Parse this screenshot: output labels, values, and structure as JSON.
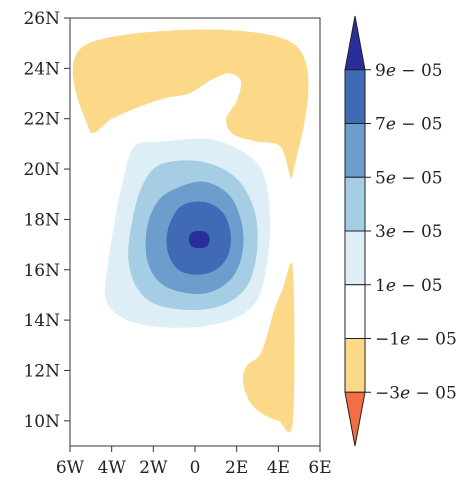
{
  "chart_data": {
    "type": "heatmap",
    "subtype": "filled-contour-map",
    "title": "",
    "xlabel": "",
    "ylabel": "",
    "xlim": [
      -6,
      6
    ],
    "ylim": [
      9,
      26
    ],
    "xticks": [
      {
        "value": -6,
        "label": "6W"
      },
      {
        "value": -4,
        "label": "4W"
      },
      {
        "value": -2,
        "label": "2W"
      },
      {
        "value": 0,
        "label": "0"
      },
      {
        "value": 2,
        "label": "2E"
      },
      {
        "value": 4,
        "label": "4E"
      },
      {
        "value": 6,
        "label": "6E"
      }
    ],
    "yticks": [
      {
        "value": 10,
        "label": "10N"
      },
      {
        "value": 12,
        "label": "12N"
      },
      {
        "value": 14,
        "label": "14N"
      },
      {
        "value": 16,
        "label": "16N"
      },
      {
        "value": 18,
        "label": "18N"
      },
      {
        "value": 20,
        "label": "20N"
      },
      {
        "value": 22,
        "label": "22N"
      },
      {
        "value": 24,
        "label": "24N"
      },
      {
        "value": 26,
        "label": "26N"
      }
    ],
    "grid": false,
    "colorbar": {
      "placement": "right",
      "extend": "both",
      "levels": [
        {
          "value": 9e-05,
          "label": "9e − 05"
        },
        {
          "value": 7e-05,
          "label": "7e − 05"
        },
        {
          "value": 5e-05,
          "label": "5e − 05"
        },
        {
          "value": 3e-05,
          "label": "3e − 05"
        },
        {
          "value": 1e-05,
          "label": "1e − 05"
        },
        {
          "value": -1e-05,
          "label": "−1e − 05"
        },
        {
          "value": -3e-05,
          "label": "−3e − 05"
        }
      ],
      "bands": [
        {
          "range": [
            9e-05,
            null
          ],
          "color": "#2b2d9b"
        },
        {
          "range": [
            7e-05,
            9e-05
          ],
          "color": "#3f6ab5"
        },
        {
          "range": [
            5e-05,
            7e-05
          ],
          "color": "#6c9dcc"
        },
        {
          "range": [
            3e-05,
            5e-05
          ],
          "color": "#a5cde3"
        },
        {
          "range": [
            1e-05,
            3e-05
          ],
          "color": "#ddeef7"
        },
        {
          "range": [
            -1e-05,
            1e-05
          ],
          "color": "#ffffff"
        },
        {
          "range": [
            -3e-05,
            -1e-05
          ],
          "color": "#fcd889"
        },
        {
          "range": [
            null,
            -3e-05
          ],
          "color": "#f46d43"
        }
      ]
    },
    "contours": {
      "positive_center": {
        "lon": 0.3,
        "lat": 17.2
      },
      "filled_regions": [
        {
          "level": 1e-05,
          "color": "#ddeef7",
          "polygon": [
            [
              -2.9,
              20.9
            ],
            [
              -1.5,
              21.1
            ],
            [
              0.5,
              21.2
            ],
            [
              1.8,
              20.9
            ],
            [
              2.9,
              20.3
            ],
            [
              3.4,
              19.5
            ],
            [
              3.6,
              18
            ],
            [
              3.5,
              16.5
            ],
            [
              3.1,
              15
            ],
            [
              2.4,
              14.3
            ],
            [
              1.3,
              13.9
            ],
            [
              -0.4,
              13.7
            ],
            [
              -2.4,
              13.8
            ],
            [
              -3.7,
              14.2
            ],
            [
              -4.3,
              14.9
            ],
            [
              -4.2,
              16.1
            ],
            [
              -3.9,
              17.7
            ],
            [
              -3.5,
              19.4
            ]
          ]
        },
        {
          "level": 3e-05,
          "color": "#a5cde3",
          "polygon": [
            [
              -1.6,
              20.2
            ],
            [
              0.3,
              20.3
            ],
            [
              1.9,
              19.7
            ],
            [
              2.8,
              18.5
            ],
            [
              3.0,
              17
            ],
            [
              2.6,
              15.5
            ],
            [
              1.6,
              14.7
            ],
            [
              0.1,
              14.4
            ],
            [
              -1.8,
              14.6
            ],
            [
              -2.8,
              15.3
            ],
            [
              -3.2,
              16.5
            ],
            [
              -3.0,
              18
            ],
            [
              -2.5,
              19.4
            ]
          ]
        },
        {
          "level": 5e-05,
          "color": "#6c9dcc",
          "polygon": [
            [
              -1.0,
              19.2
            ],
            [
              0.4,
              19.5
            ],
            [
              1.6,
              19.0
            ],
            [
              2.2,
              18
            ],
            [
              2.3,
              16.8
            ],
            [
              1.8,
              15.7
            ],
            [
              0.7,
              15.1
            ],
            [
              -0.6,
              15.1
            ],
            [
              -1.7,
              15.5
            ],
            [
              -2.3,
              16.4
            ],
            [
              -2.3,
              17.7
            ],
            [
              -1.8,
              18.7
            ]
          ]
        },
        {
          "level": 7e-05,
          "color": "#3f6ab5",
          "polygon": [
            [
              -0.7,
              18.5
            ],
            [
              0.4,
              18.7
            ],
            [
              1.3,
              18.3
            ],
            [
              1.7,
              17.5
            ],
            [
              1.6,
              16.6
            ],
            [
              1.0,
              16.0
            ],
            [
              0.1,
              15.8
            ],
            [
              -0.8,
              16.0
            ],
            [
              -1.3,
              16.7
            ],
            [
              -1.3,
              17.6
            ]
          ]
        },
        {
          "level": 9e-05,
          "color": "#2b2d9b",
          "polygon": [
            [
              -0.1,
              17.5
            ],
            [
              0.5,
              17.5
            ],
            [
              0.7,
              17.2
            ],
            [
              0.5,
              16.9
            ],
            [
              -0.1,
              16.9
            ],
            [
              -0.3,
              17.2
            ]
          ]
        }
      ],
      "negative_regions": [
        {
          "level": -1e-05,
          "color": "#fcd889",
          "polygon": [
            [
              -5.1,
              25.0
            ],
            [
              4.7,
              25.0
            ],
            [
              4.7,
              19.8
            ],
            [
              4.1,
              20.9
            ],
            [
              2.9,
              21.1
            ],
            [
              1.8,
              21.4
            ],
            [
              1.5,
              22.0
            ],
            [
              2.0,
              22.7
            ],
            [
              2.2,
              23.5
            ],
            [
              1.6,
              23.8
            ],
            [
              0.7,
              23.5
            ],
            [
              -0.3,
              23.0
            ],
            [
              -1.5,
              22.8
            ],
            [
              -2.9,
              22.4
            ],
            [
              -4.0,
              22.0
            ],
            [
              -5.1,
              21.6
            ]
          ]
        },
        {
          "level": -1e-05,
          "color": "#fcd889",
          "polygon": [
            [
              4.7,
              16.0
            ],
            [
              4.7,
              10.0
            ],
            [
              4.0,
              10.0
            ],
            [
              3.2,
              10.3
            ],
            [
              2.6,
              10.8
            ],
            [
              2.3,
              11.6
            ],
            [
              2.5,
              12.2
            ],
            [
              3.1,
              12.6
            ],
            [
              3.5,
              13.5
            ],
            [
              3.8,
              14.4
            ],
            [
              4.2,
              15.2
            ]
          ]
        }
      ]
    }
  }
}
